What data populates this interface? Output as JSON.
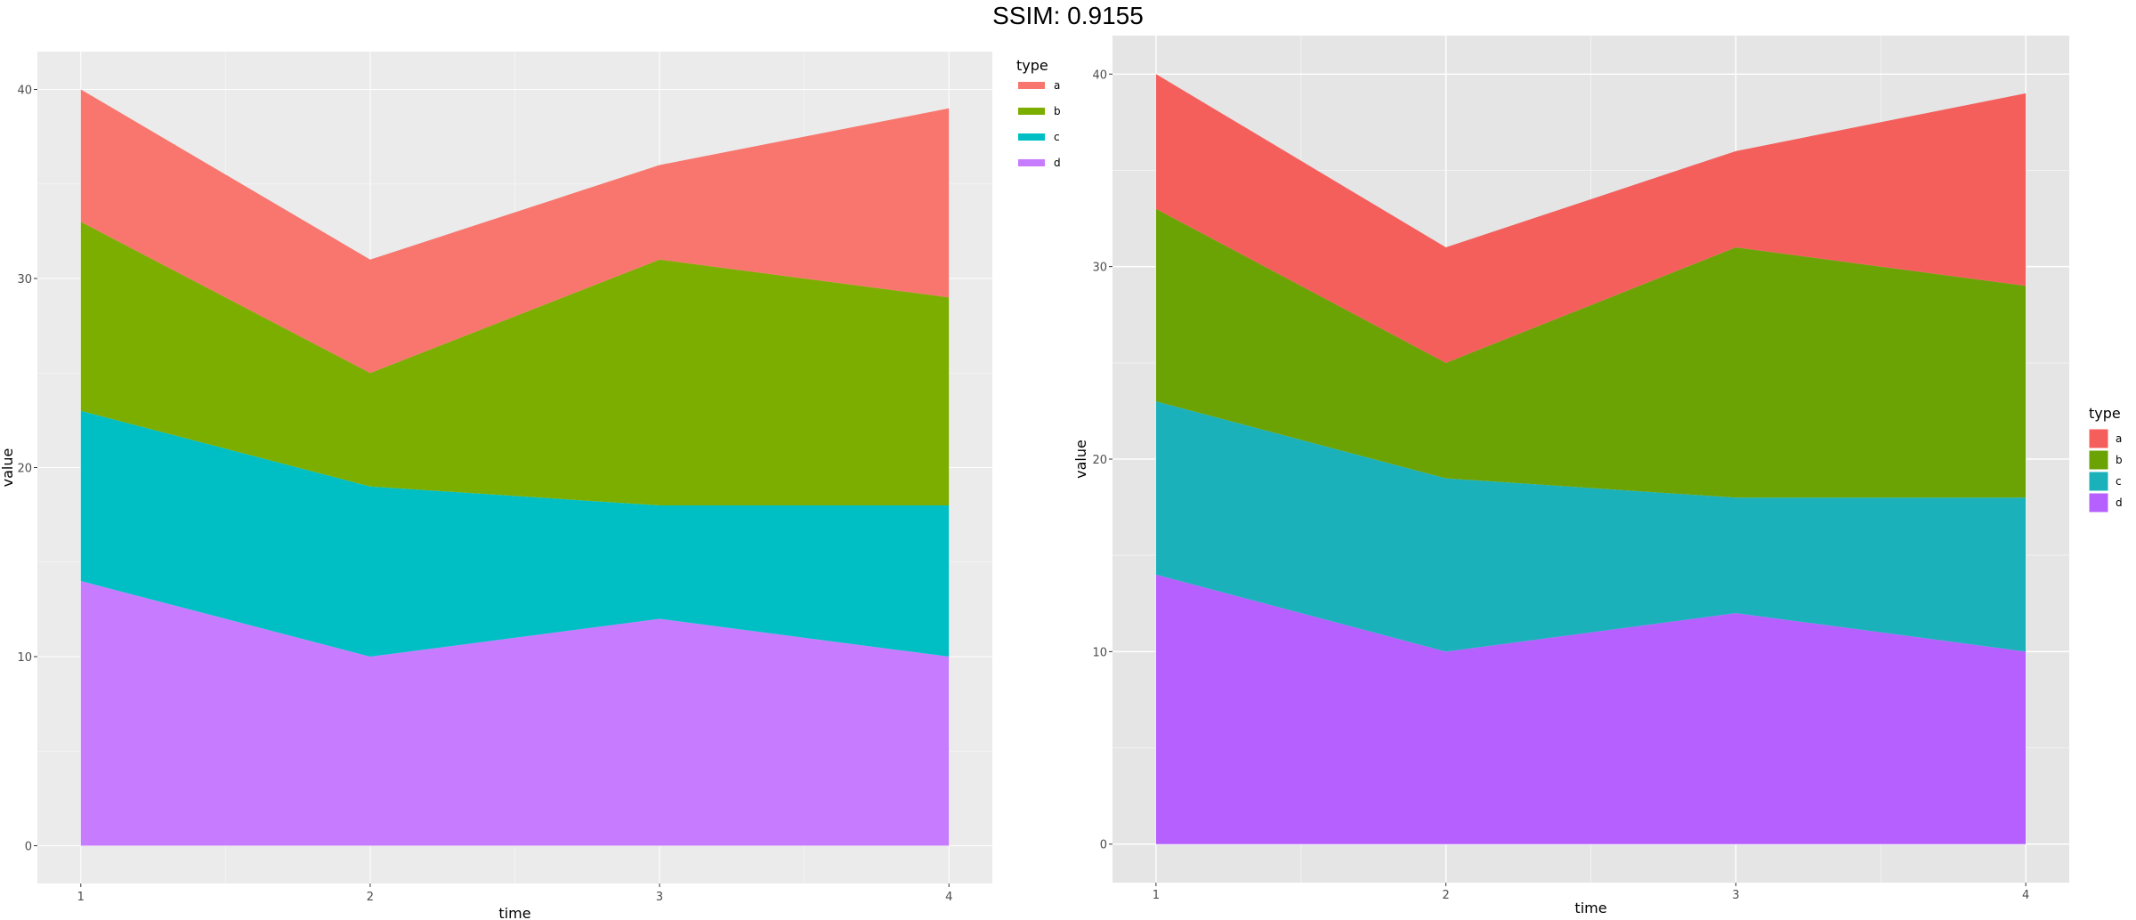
{
  "header": {
    "title": "SSIM: 0.9155"
  },
  "chart_data": [
    {
      "type": "area",
      "stacked": true,
      "title": "",
      "xlabel": "time",
      "ylabel": "value",
      "x": [
        1,
        2,
        3,
        4
      ],
      "xticks": [
        "1",
        "2",
        "3",
        "4"
      ],
      "yticks": [
        "0",
        "10",
        "20",
        "30",
        "40"
      ],
      "xlim": [
        0.85,
        4.15
      ],
      "ylim": [
        0,
        40
      ],
      "legend": {
        "title": "type",
        "placement": "top-right",
        "style": "line"
      },
      "grid": true,
      "series": [
        {
          "name": "d",
          "values": [
            14,
            10,
            12,
            10
          ],
          "color": "#C77CFF"
        },
        {
          "name": "c",
          "values": [
            9,
            9,
            6,
            8
          ],
          "color": "#00BFC4"
        },
        {
          "name": "b",
          "values": [
            10,
            6,
            13,
            11
          ],
          "color": "#7CAE00"
        },
        {
          "name": "a",
          "values": [
            7,
            6,
            5,
            10
          ],
          "color": "#F8766D"
        }
      ]
    },
    {
      "type": "area",
      "stacked": true,
      "title": "",
      "xlabel": "time",
      "ylabel": "value",
      "x": [
        1,
        2,
        3,
        4
      ],
      "xticks": [
        "1",
        "2",
        "3",
        "4"
      ],
      "yticks": [
        "0",
        "10",
        "20",
        "30",
        "40"
      ],
      "xlim": [
        0.85,
        4.15
      ],
      "ylim": [
        0,
        40
      ],
      "legend": {
        "title": "type",
        "placement": "right",
        "style": "box"
      },
      "grid": true,
      "series": [
        {
          "name": "d",
          "values": [
            14,
            10,
            12,
            10
          ],
          "color": "#B660FF"
        },
        {
          "name": "c",
          "values": [
            9,
            9,
            6,
            8
          ],
          "color": "#1BB1BB"
        },
        {
          "name": "b",
          "values": [
            10,
            6,
            13,
            11
          ],
          "color": "#6BA305"
        },
        {
          "name": "a",
          "values": [
            7,
            6,
            5,
            10
          ],
          "color": "#F45F5C"
        }
      ]
    }
  ]
}
